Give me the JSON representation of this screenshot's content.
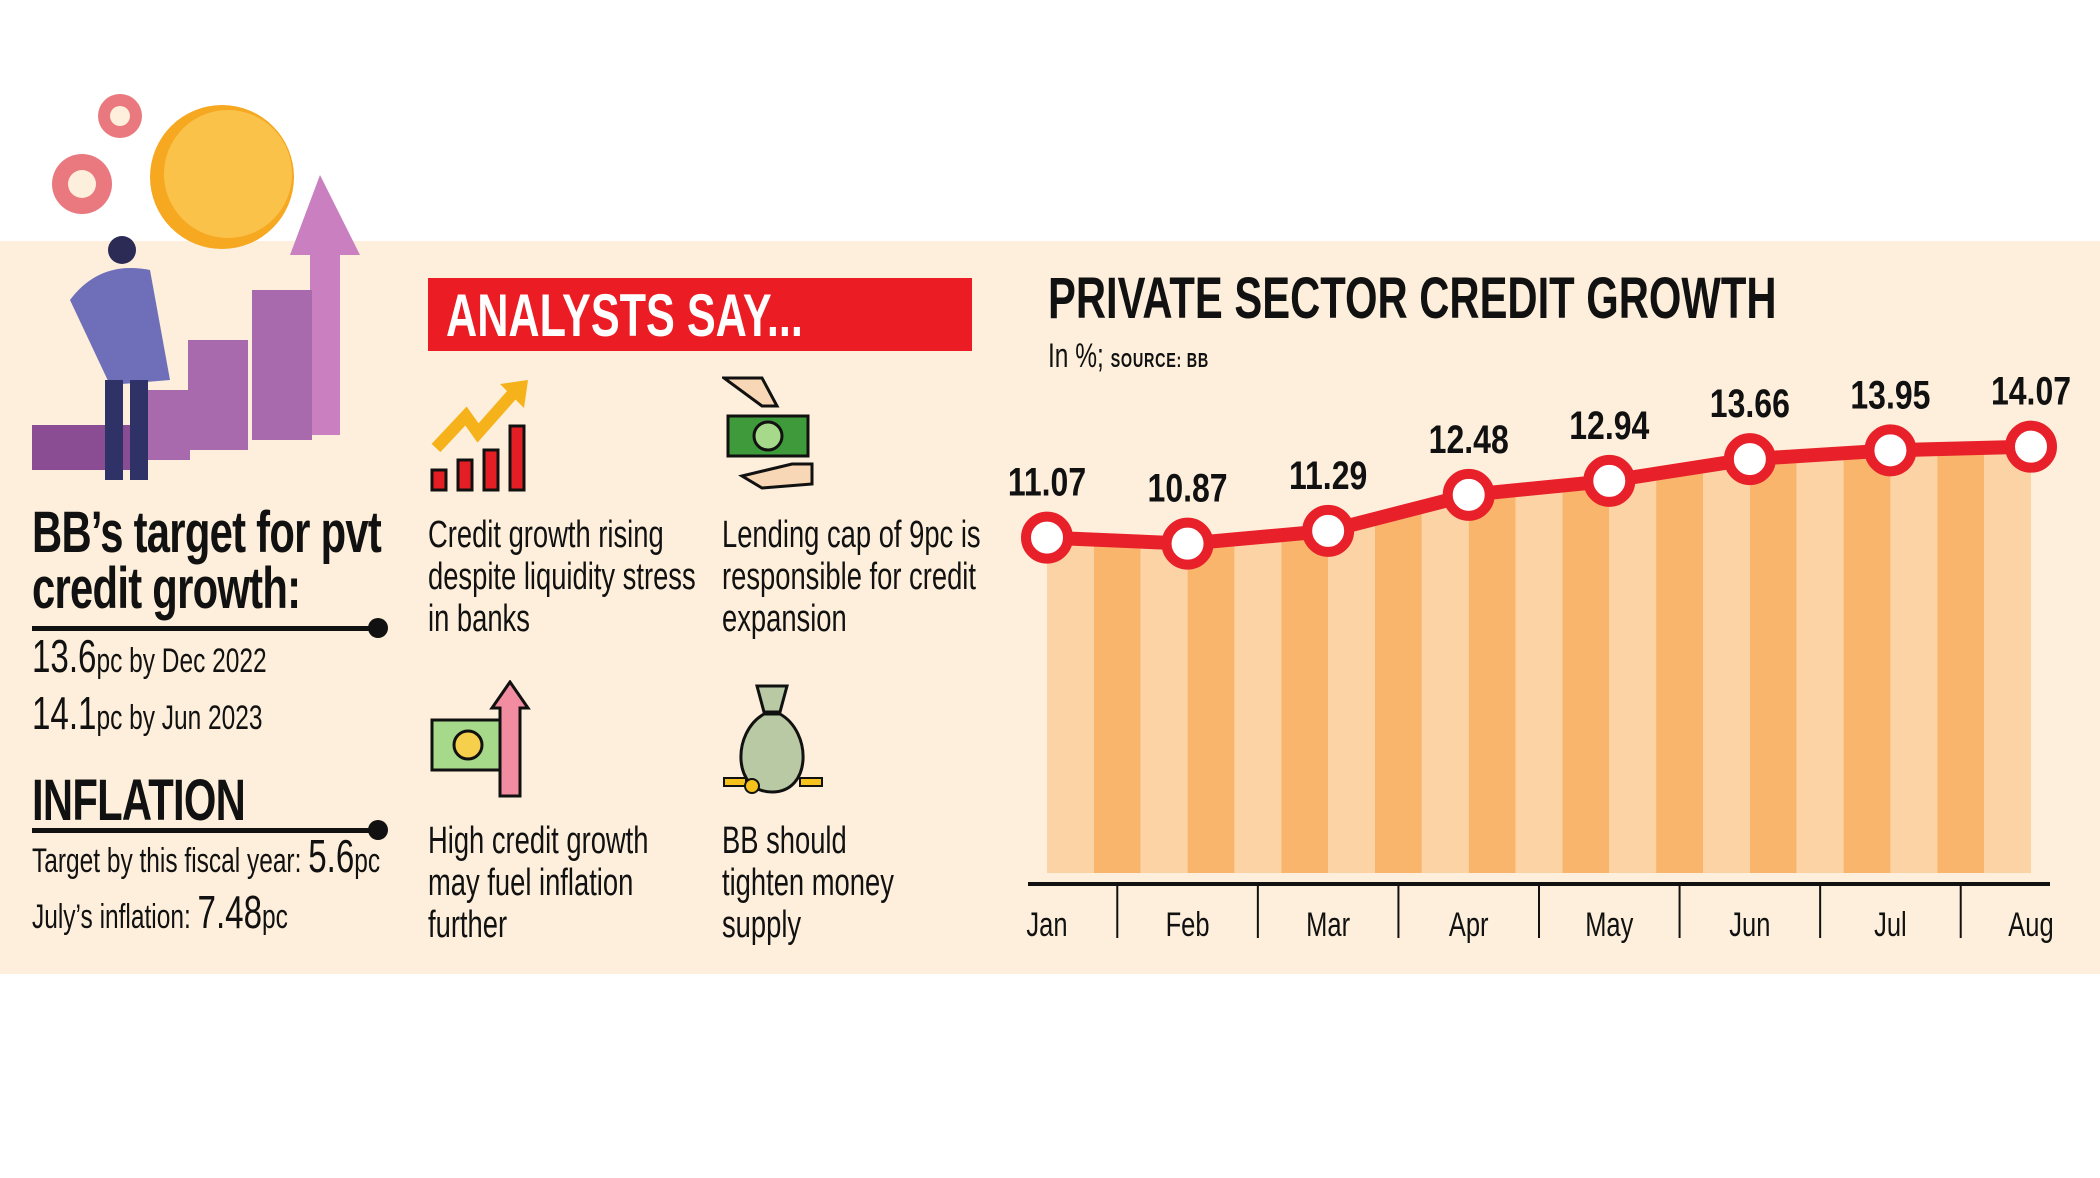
{
  "left_panel": {
    "target_heading_line1": "BB’s target for pvt",
    "target_heading_line2": "credit growth:",
    "targets": [
      {
        "value": "13.6",
        "suffix": "pc by Dec 2022"
      },
      {
        "value": "14.1",
        "suffix": "pc by Jun 2023"
      }
    ],
    "inflation_heading": "INFLATION",
    "inflation": [
      {
        "label": "Target by this fiscal year: ",
        "value": "5.6",
        "unit": "pc"
      },
      {
        "label": "July’s inflation: ",
        "value": "7.48",
        "unit": "pc"
      }
    ]
  },
  "analysts": {
    "banner": "ANALYSTS SAY...",
    "items": [
      {
        "icon": "rising-bar-chart-icon",
        "lines": [
          "Credit growth rising",
          "despite liquidity stress",
          "in banks"
        ]
      },
      {
        "icon": "money-handover-icon",
        "lines": [
          "Lending cap of 9pc is",
          "responsible for credit",
          "expansion"
        ]
      },
      {
        "icon": "cash-up-arrow-icon",
        "lines": [
          "High credit growth",
          "may fuel inflation",
          "further"
        ]
      },
      {
        "icon": "money-bag-icon",
        "lines": [
          "BB should",
          "tighten money",
          "supply"
        ]
      }
    ]
  },
  "colors": {
    "band": "#fdefdb",
    "banner": "#ec1c24",
    "line": "#e8202a",
    "stripe_light": "#fcd3a4",
    "stripe_dark": "#f9b56c"
  },
  "chart_data": {
    "type": "line",
    "title": "PRIVATE SECTOR CREDIT GROWTH",
    "subtitle_unit": "In %; ",
    "subtitle_source": "SOURCE: BB",
    "categories": [
      "Jan",
      "Feb",
      "Mar",
      "Apr",
      "May",
      "Jun",
      "Jul",
      "Aug"
    ],
    "values": [
      11.07,
      10.87,
      11.29,
      12.48,
      12.94,
      13.66,
      13.95,
      14.07
    ],
    "labels": [
      "11.07",
      "10.87",
      "11.29",
      "12.48",
      "12.94",
      "13.66",
      "13.95",
      "14.07"
    ],
    "ylim": [
      0,
      14.07
    ],
    "grid": false,
    "area_fill": "striped"
  }
}
